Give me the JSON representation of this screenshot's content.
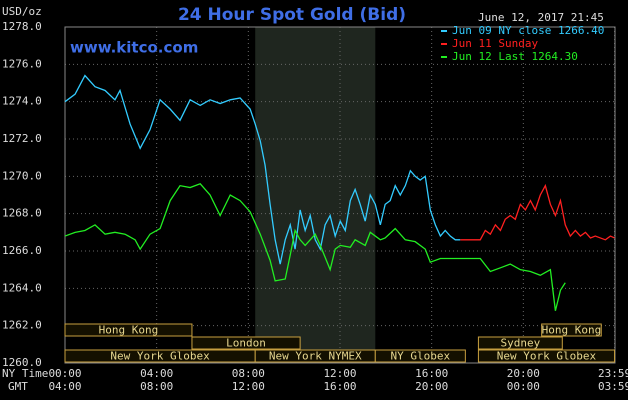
{
  "chart_data": {
    "type": "line",
    "title": "24 Hour Spot Gold (Bid)",
    "website": "www.kitco.com",
    "y_unit": "USD/oz",
    "timestamp": "June 12, 2017 21:45",
    "x_row_label": "NY Time",
    "x2_row_label": "GMT",
    "xlim": [
      0,
      24
    ],
    "xticks": [
      {
        "value": 0,
        "label": "00:00"
      },
      {
        "value": 4,
        "label": "04:00"
      },
      {
        "value": 8,
        "label": "08:00"
      },
      {
        "value": 12,
        "label": "12:00"
      },
      {
        "value": 16,
        "label": "16:00"
      },
      {
        "value": 20,
        "label": "20:00"
      },
      {
        "value": 23.98,
        "label": "23:59"
      }
    ],
    "x2tick_labels": [
      "04:00",
      "08:00",
      "12:00",
      "16:00",
      "20:00",
      "00:00",
      "03:59"
    ],
    "ylim": [
      1260,
      1278
    ],
    "yticks": [
      {
        "value": 1260,
        "label": "1260.0"
      },
      {
        "value": 1262,
        "label": "1262.0"
      },
      {
        "value": 1264,
        "label": "1264.0"
      },
      {
        "value": 1266,
        "label": "1266.0"
      },
      {
        "value": 1268,
        "label": "1268.0"
      },
      {
        "value": 1270,
        "label": "1270.0"
      },
      {
        "value": 1272,
        "label": "1272.0"
      },
      {
        "value": 1274,
        "label": "1274.0"
      },
      {
        "value": 1276,
        "label": "1276.0"
      },
      {
        "value": 1278,
        "label": "1278.0"
      }
    ],
    "grid": true,
    "legend": "top-right",
    "series": [
      {
        "name": "Jun 09 NY close 1266.40",
        "color": "#33ccff",
        "x": [
          0,
          0.44,
          0.87,
          1.31,
          1.75,
          2.18,
          2.4,
          2.84,
          3.28,
          3.71,
          4.15,
          4.59,
          5.02,
          5.46,
          5.9,
          6.33,
          6.77,
          7.21,
          7.64,
          8.08,
          8.3,
          8.52,
          8.73,
          8.95,
          9.17,
          9.39,
          9.61,
          9.83,
          10.04,
          10.26,
          10.48,
          10.7,
          10.92,
          11.14,
          11.35,
          11.57,
          11.79,
          12.01,
          12.23,
          12.45,
          12.66,
          12.88,
          13.1,
          13.32,
          13.54,
          13.76,
          13.97,
          14.19,
          14.41,
          14.63,
          14.85,
          15.07,
          15.28,
          15.5,
          15.72,
          15.94,
          16.16,
          16.38,
          16.59,
          16.81,
          17.03,
          17.25
        ],
        "values": [
          1274.0,
          1274.4,
          1275.4,
          1274.8,
          1274.6,
          1274.1,
          1274.6,
          1272.8,
          1271.5,
          1272.5,
          1274.1,
          1273.6,
          1273.0,
          1274.1,
          1273.8,
          1274.1,
          1273.9,
          1274.1,
          1274.2,
          1273.6,
          1272.8,
          1271.9,
          1270.6,
          1268.5,
          1266.6,
          1265.3,
          1266.6,
          1267.4,
          1266.1,
          1268.2,
          1267.1,
          1267.9,
          1266.6,
          1266.1,
          1267.4,
          1267.9,
          1266.8,
          1267.6,
          1267.1,
          1268.7,
          1269.3,
          1268.5,
          1267.6,
          1269.0,
          1268.5,
          1267.4,
          1268.5,
          1268.7,
          1269.5,
          1269.0,
          1269.5,
          1270.3,
          1270.0,
          1269.8,
          1270.0,
          1268.2,
          1267.4,
          1266.8,
          1267.1,
          1266.8,
          1266.6,
          1266.6
        ]
      },
      {
        "name": "Jun 11 Sunday",
        "color": "#ff2020",
        "x": [
          17.25,
          17.69,
          18.12,
          18.34,
          18.56,
          18.78,
          19,
          19.21,
          19.43,
          19.65,
          19.87,
          20.09,
          20.31,
          20.52,
          20.74,
          20.96,
          21.18,
          21.4,
          21.62,
          21.83,
          22.05,
          22.27,
          22.49,
          22.71,
          22.93,
          23.14,
          23.36,
          23.58,
          23.8,
          23.98
        ],
        "values": [
          1266.6,
          1266.6,
          1266.6,
          1267.1,
          1266.9,
          1267.4,
          1267.1,
          1267.7,
          1267.9,
          1267.7,
          1268.5,
          1268.2,
          1268.7,
          1268.2,
          1269.0,
          1269.5,
          1268.5,
          1267.9,
          1268.7,
          1267.4,
          1266.8,
          1267.1,
          1266.8,
          1267.0,
          1266.7,
          1266.8,
          1266.7,
          1266.6,
          1266.8,
          1266.7
        ]
      },
      {
        "name": "Jun 12 Last 1264.30",
        "color": "#22ee22",
        "x": [
          0,
          0.44,
          0.87,
          1.31,
          1.75,
          2.18,
          2.62,
          3.06,
          3.28,
          3.71,
          4.15,
          4.59,
          5.02,
          5.46,
          5.9,
          6.33,
          6.77,
          7.21,
          7.64,
          8.08,
          8.52,
          8.95,
          9.17,
          9.61,
          9.83,
          10.04,
          10.26,
          10.48,
          10.92,
          11.14,
          11.57,
          11.79,
          12.01,
          12.45,
          12.66,
          13.1,
          13.32,
          13.76,
          13.97,
          14.41,
          14.85,
          15.28,
          15.72,
          15.94,
          16.38,
          16.81,
          17.25,
          18.12,
          18.56,
          19,
          19.43,
          19.87,
          20.31,
          20.74,
          21.18,
          21.4,
          21.62,
          21.83
        ],
        "values": [
          1266.8,
          1267.0,
          1267.1,
          1267.4,
          1266.9,
          1267.0,
          1266.9,
          1266.6,
          1266.1,
          1266.9,
          1267.2,
          1268.7,
          1269.5,
          1269.4,
          1269.6,
          1269.0,
          1267.9,
          1269.0,
          1268.7,
          1268.1,
          1266.9,
          1265.5,
          1264.4,
          1264.5,
          1265.8,
          1267.1,
          1266.6,
          1266.3,
          1266.9,
          1266.3,
          1265.0,
          1266.1,
          1266.3,
          1266.2,
          1266.6,
          1266.3,
          1267.0,
          1266.6,
          1266.7,
          1267.2,
          1266.6,
          1266.5,
          1266.1,
          1265.4,
          1265.6,
          1265.6,
          1265.6,
          1265.6,
          1264.9,
          1265.1,
          1265.3,
          1265.0,
          1264.9,
          1264.7,
          1265.0,
          1262.8,
          1263.9,
          1264.3
        ]
      }
    ],
    "sessions": [
      {
        "label": "Hong Kong",
        "start": 0,
        "end": 5.54,
        "row": 0
      },
      {
        "label": "Hong Kong",
        "start": 20.8,
        "end": 23.4,
        "row": 0
      },
      {
        "label": "London",
        "start": 5.54,
        "end": 10.26,
        "row": 1
      },
      {
        "label": "Sydney",
        "start": 18.04,
        "end": 21.7,
        "row": 1
      },
      {
        "label": "New York Globex",
        "start": 0,
        "end": 8.3,
        "row": 2
      },
      {
        "label": "New York NYMEX",
        "start": 8.3,
        "end": 13.54,
        "row": 2,
        "highlight": true
      },
      {
        "label": "NY Globex",
        "start": 13.54,
        "end": 17.47,
        "row": 2
      },
      {
        "label": "New York Globex",
        "start": 18.04,
        "end": 23.98,
        "row": 2
      }
    ]
  }
}
